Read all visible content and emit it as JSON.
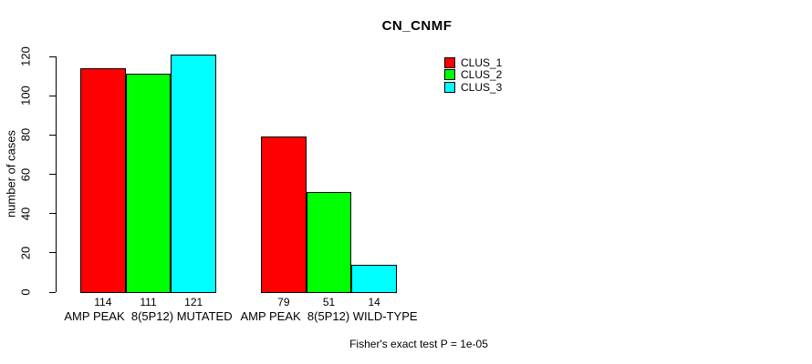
{
  "chart_data": {
    "type": "bar",
    "title": "CN_CNMF",
    "xlabel": "",
    "ylabel": "number of cases",
    "ylim": [
      0,
      120
    ],
    "yticks": [
      0,
      20,
      40,
      60,
      80,
      100,
      120
    ],
    "grid": false,
    "legend_position": "top-right",
    "categories": [
      "AMP PEAK  8(5P12) MUTATED",
      "AMP PEAK  8(5P12) WILD-TYPE"
    ],
    "series": [
      {
        "name": "CLUS_1",
        "color": "#ff0000",
        "values": [
          114,
          79
        ]
      },
      {
        "name": "CLUS_2",
        "color": "#00ff00",
        "values": [
          111,
          51
        ]
      },
      {
        "name": "CLUS_3",
        "color": "#00ffff",
        "values": [
          121,
          14
        ]
      }
    ],
    "bar_value_labels": [
      [
        114,
        111,
        121
      ],
      [
        79,
        51,
        14
      ]
    ],
    "annotation": "Fisher's exact test P = 1e-05"
  },
  "colors": {
    "clus_1": "#ff0000",
    "clus_2": "#00ff00",
    "clus_3": "#00ffff",
    "axis": "#000000",
    "background": "#ffffff"
  }
}
